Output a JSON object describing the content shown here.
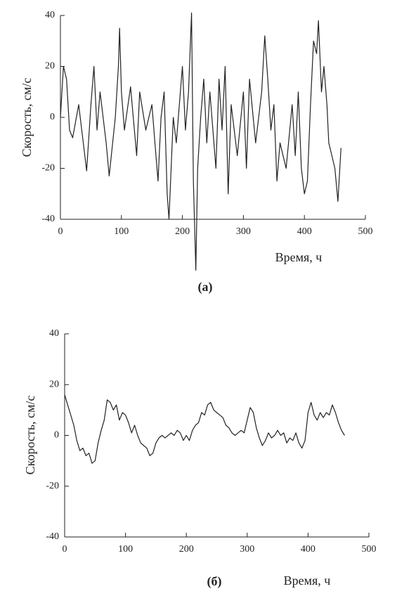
{
  "charts": [
    {
      "type": "line",
      "caption": "(а)",
      "xlabel": "Время, ч",
      "ylabel": "Скорость, см/с",
      "xlim": [
        0,
        500
      ],
      "ylim": [
        -40,
        40
      ],
      "xticks": [
        0,
        100,
        200,
        300,
        400,
        500
      ],
      "yticks": [
        -40,
        -20,
        0,
        20,
        40
      ],
      "x": [
        0,
        5,
        10,
        15,
        20,
        30,
        43,
        50,
        55,
        60,
        65,
        75,
        80,
        90,
        95,
        97,
        100,
        105,
        115,
        125,
        130,
        140,
        150,
        155,
        160,
        165,
        170,
        175,
        178,
        185,
        190,
        200,
        205,
        210,
        215,
        218,
        222,
        225,
        230,
        235,
        240,
        245,
        255,
        260,
        265,
        270,
        275,
        280,
        290,
        300,
        305,
        310,
        320,
        330,
        335,
        340,
        345,
        350,
        355,
        360,
        370,
        380,
        385,
        390,
        395,
        400,
        405,
        410,
        415,
        420,
        423,
        428,
        432,
        437,
        440,
        445,
        450,
        455,
        460
      ],
      "series": [
        {
          "color": "#222222",
          "values": [
            0,
            20,
            15,
            -5,
            -8,
            5,
            -21,
            5,
            20,
            -5,
            10,
            -10,
            -23,
            0,
            20,
            35,
            10,
            -5,
            12,
            -15,
            10,
            -5,
            5,
            -10,
            -25,
            0,
            10,
            -30,
            -40,
            0,
            -10,
            20,
            -5,
            10,
            41,
            -25,
            -60,
            -20,
            0,
            15,
            -10,
            10,
            -20,
            15,
            -5,
            20,
            -30,
            5,
            -15,
            10,
            -20,
            15,
            -10,
            10,
            32,
            15,
            -5,
            5,
            -25,
            -10,
            -20,
            5,
            -15,
            10,
            -20,
            -30,
            -25,
            5,
            30,
            25,
            38,
            10,
            20,
            5,
            -10,
            -15,
            -20,
            -33,
            -12
          ]
        }
      ]
    },
    {
      "type": "line",
      "caption": "(б)",
      "xlabel": "Время, ч",
      "ylabel": "Скорость, см/с",
      "xlim": [
        0,
        500
      ],
      "ylim": [
        -40,
        40
      ],
      "xticks": [
        0,
        100,
        200,
        300,
        400,
        500
      ],
      "yticks": [
        -40,
        -20,
        0,
        20,
        40
      ],
      "x": [
        0,
        5,
        10,
        15,
        20,
        25,
        30,
        35,
        40,
        45,
        50,
        55,
        60,
        65,
        70,
        75,
        80,
        85,
        90,
        95,
        100,
        105,
        110,
        115,
        120,
        125,
        130,
        135,
        140,
        145,
        150,
        155,
        160,
        165,
        170,
        175,
        180,
        185,
        190,
        195,
        200,
        205,
        210,
        215,
        220,
        225,
        230,
        235,
        240,
        245,
        250,
        255,
        260,
        265,
        270,
        275,
        280,
        285,
        290,
        295,
        300,
        305,
        310,
        315,
        320,
        325,
        330,
        335,
        340,
        345,
        350,
        355,
        360,
        365,
        370,
        375,
        380,
        385,
        390,
        395,
        400,
        405,
        410,
        415,
        420,
        425,
        430,
        435,
        440,
        445,
        450,
        455,
        460
      ],
      "series": [
        {
          "color": "#222222",
          "values": [
            16,
            12,
            8,
            4,
            -2,
            -6,
            -5,
            -8,
            -7,
            -11,
            -10,
            -3,
            2,
            6,
            14,
            13,
            10,
            12,
            6,
            9,
            8,
            5,
            1,
            4,
            0,
            -3,
            -4,
            -5,
            -8,
            -7,
            -3,
            -1,
            0,
            -1,
            0,
            1,
            0,
            2,
            1,
            -2,
            0,
            -2,
            2,
            4,
            5,
            9,
            8,
            12,
            13,
            10,
            9,
            8,
            7,
            4,
            3,
            1,
            0,
            1,
            2,
            1,
            6,
            11,
            9,
            3,
            -1,
            -4,
            -2,
            1,
            -1,
            0,
            2,
            0,
            1,
            -3,
            -1,
            -2,
            1,
            -3,
            -5,
            -2,
            9,
            13,
            8,
            6,
            9,
            7,
            9,
            8,
            12,
            9,
            5,
            2,
            0
          ]
        }
      ]
    }
  ]
}
